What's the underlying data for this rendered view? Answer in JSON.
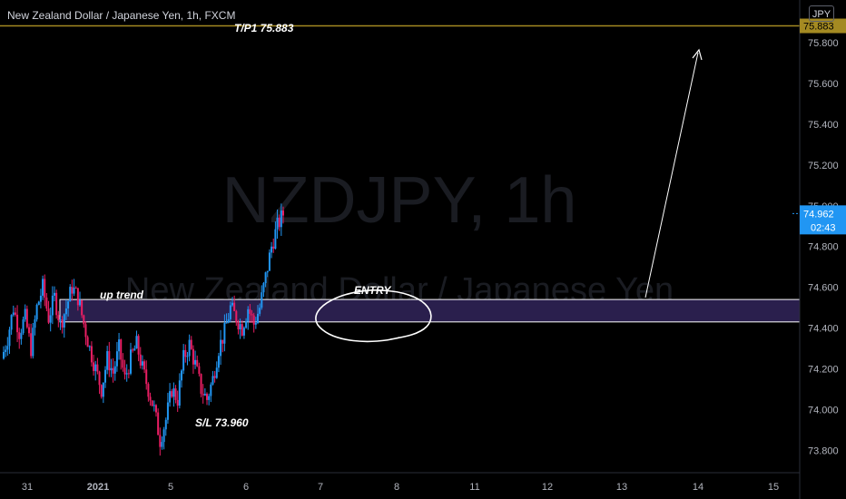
{
  "header": {
    "symbol_title": "New Zealand Dollar / Japanese Yen, 1h, FXCM",
    "currency_button": "JPY"
  },
  "watermark": {
    "line1": "NZDJPY, 1h",
    "line2": "New Zealand Dollar / Japanese Yen"
  },
  "colors": {
    "up": "#2196f3",
    "down": "#e91e63",
    "target_line": "#a48a22",
    "zone_fill": "#2a1f4d",
    "zone_border": "#ffffff",
    "price_badge": "#2196f3"
  },
  "chart_data": {
    "type": "candlestick",
    "symbol": "NZDJPY",
    "interval": "1h",
    "ylim": [
      73.69,
      76.01
    ],
    "y_ticks": [
      73.8,
      74.0,
      74.2,
      74.4,
      74.6,
      74.8,
      75.0,
      75.2,
      75.4,
      75.6,
      75.8
    ],
    "y_tick_labels": [
      "73.800",
      "74.000",
      "74.200",
      "74.400",
      "74.600",
      "74.800",
      "75.000",
      "75.200",
      "75.400",
      "75.600",
      "75.800"
    ],
    "x_tick_labels": [
      "31",
      "2021",
      "5",
      "6",
      "7",
      "8",
      "11",
      "12",
      "13",
      "14",
      "15"
    ],
    "price_path": [
      74.25,
      74.35,
      74.5,
      74.38,
      74.45,
      74.3,
      74.5,
      74.6,
      74.45,
      74.55,
      74.42,
      74.5,
      74.6,
      74.55,
      74.42,
      74.3,
      74.2,
      74.1,
      74.25,
      74.18,
      74.3,
      74.15,
      74.25,
      74.32,
      74.2,
      74.1,
      74.0,
      73.85,
      73.95,
      74.1,
      74.05,
      74.25,
      74.32,
      74.22,
      74.1,
      74.05,
      74.15,
      74.3,
      74.38,
      74.5,
      74.45,
      74.4,
      74.5,
      74.42,
      74.5,
      74.65,
      74.8,
      74.9,
      74.96
    ],
    "current_price": "74.962",
    "countdown": "02:43",
    "target_price": "75.883",
    "entry_zone": [
      74.43,
      74.54
    ],
    "annotations": {
      "target": "T/P1 75.883",
      "stop_loss": "S/L 73.960",
      "entry": "ENTRY",
      "trend": "up trend"
    }
  }
}
